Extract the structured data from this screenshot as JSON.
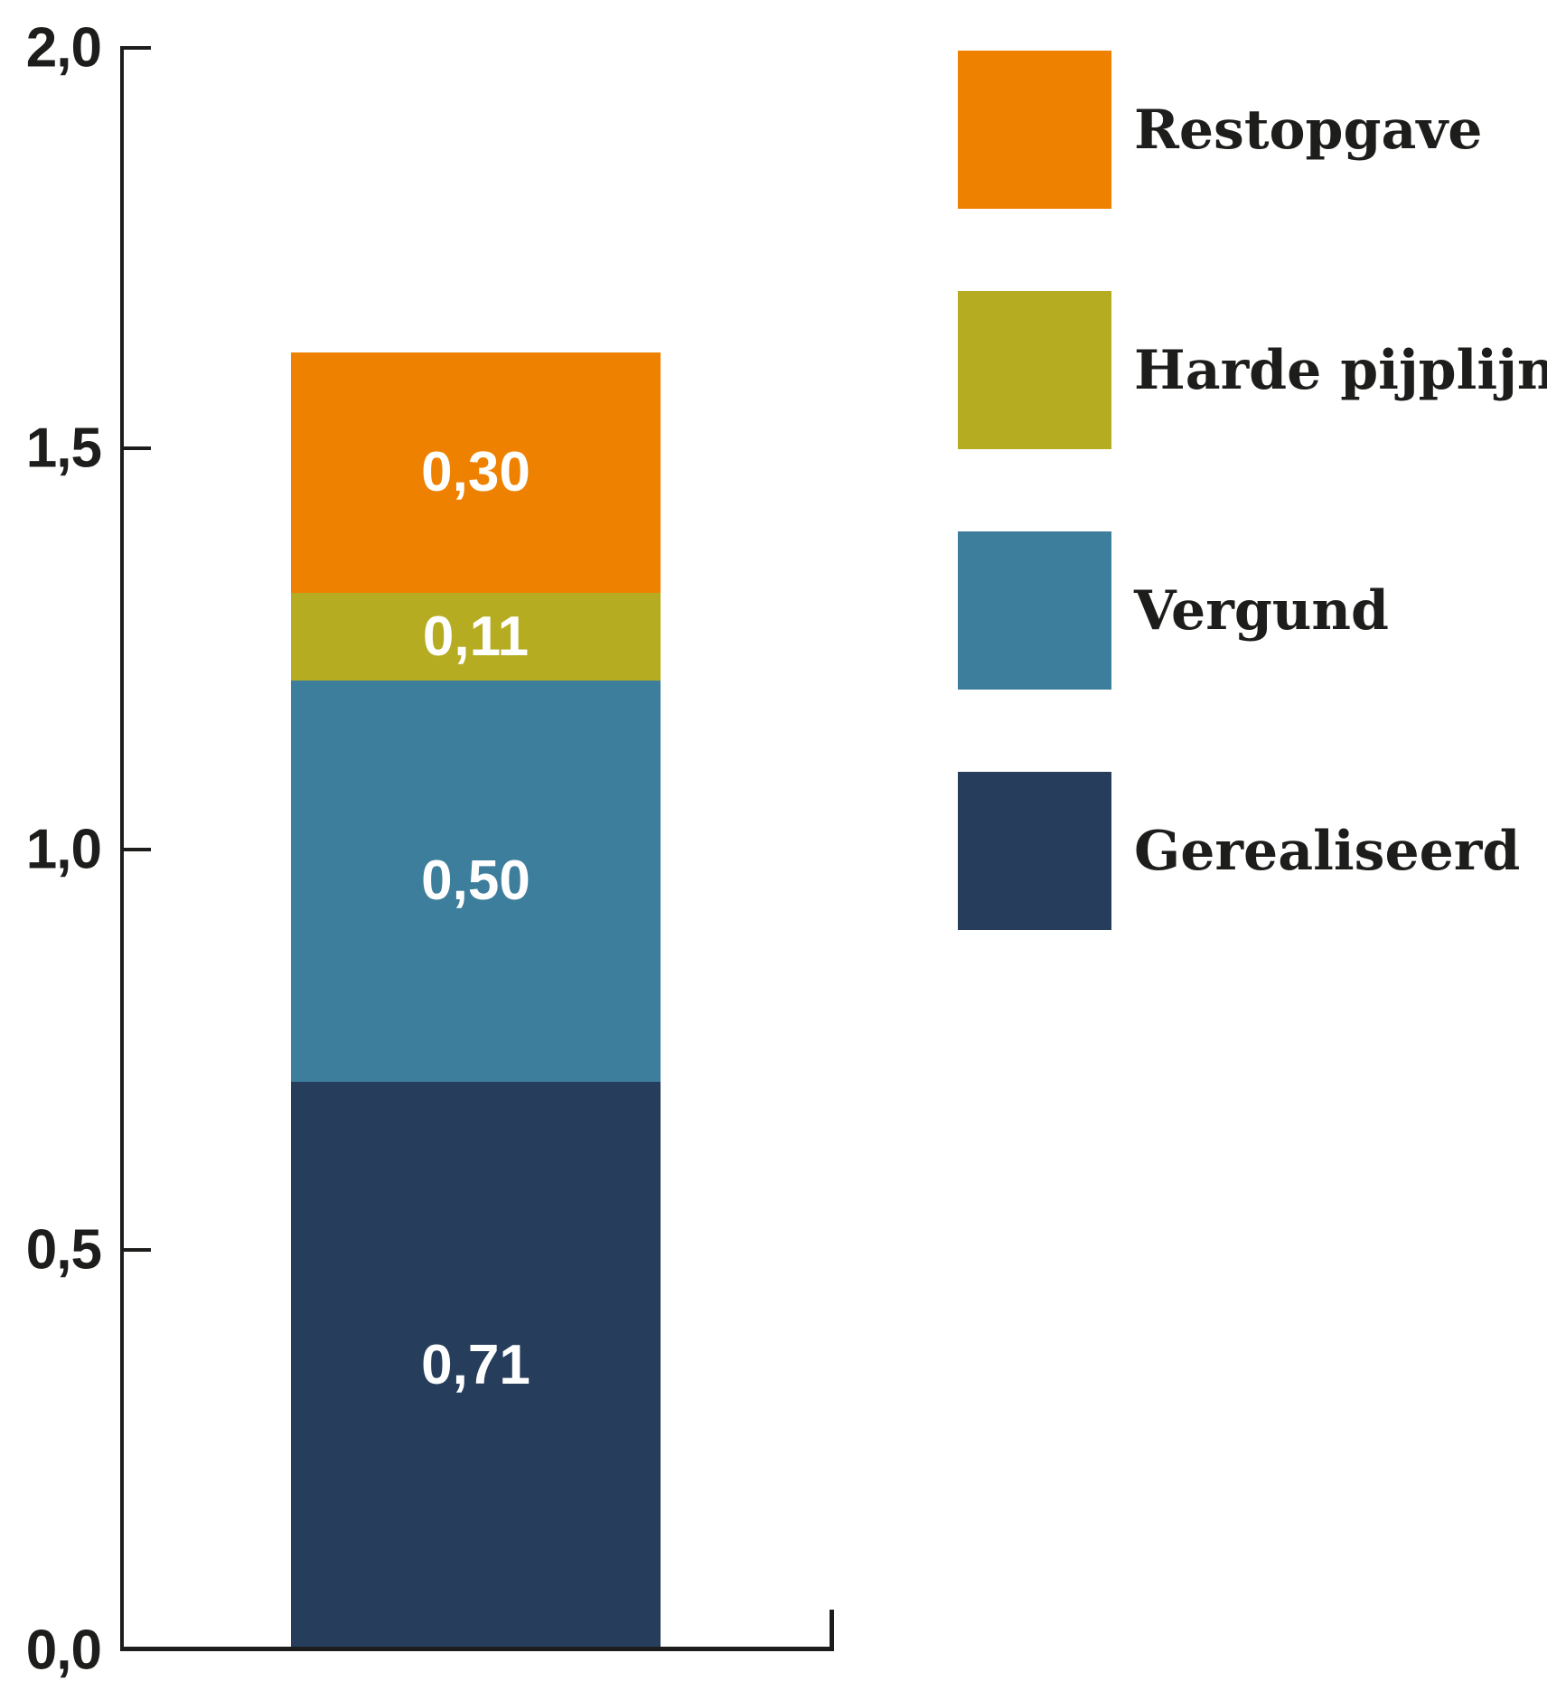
{
  "chart_data": {
    "type": "bar",
    "stacked": true,
    "orientation": "vertical",
    "categories": [
      ""
    ],
    "series": [
      {
        "name": "Gerealiseerd",
        "values": [
          0.71
        ],
        "label": "0,71",
        "color": "#263e5c"
      },
      {
        "name": "Vergund",
        "values": [
          0.5
        ],
        "label": "0,50",
        "color": "#3d7e9d"
      },
      {
        "name": "Harde pijplijn",
        "values": [
          0.11
        ],
        "label": "0,11",
        "color": "#b5ac21"
      },
      {
        "name": "Restopgave",
        "values": [
          0.3
        ],
        "label": "0,30",
        "color": "#ee8100"
      }
    ],
    "bar_total": 1.62,
    "ylim": [
      0,
      2
    ],
    "yticks": [
      {
        "value": 2.0,
        "label": "2,0"
      },
      {
        "value": 1.5,
        "label": "1,5"
      },
      {
        "value": 1.0,
        "label": "1,0"
      },
      {
        "value": 0.5,
        "label": "0,5"
      },
      {
        "value": 0.0,
        "label": "0,0"
      }
    ],
    "grid": false,
    "title": "",
    "xlabel": "",
    "ylabel": "",
    "legend_position": "right",
    "legend": [
      {
        "label": "Restopgave",
        "color": "#ee8100"
      },
      {
        "label": "Harde pijplijn",
        "color": "#b5ac21"
      },
      {
        "label": "Vergund",
        "color": "#3d7e9d"
      },
      {
        "label": "Gerealiseerd",
        "color": "#263e5c"
      }
    ],
    "axis_color": "#1d1d1b",
    "value_label_color": "#ffffff",
    "text_color": "#1d1d1b"
  }
}
